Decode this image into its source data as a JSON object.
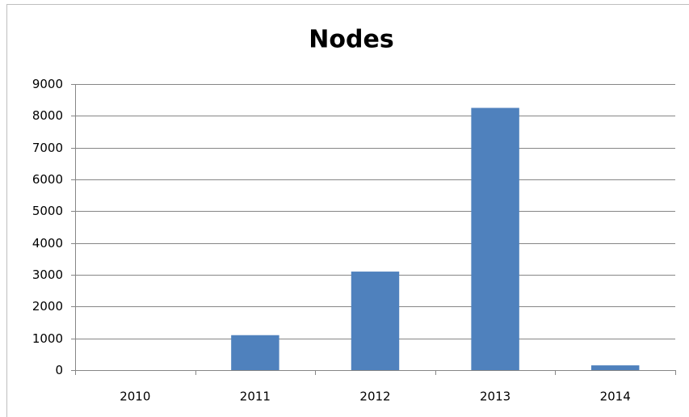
{
  "chart_data": {
    "type": "bar",
    "title": "Nodes",
    "categories": [
      "2010",
      "2011",
      "2012",
      "2013",
      "2014"
    ],
    "values": [
      0,
      1100,
      3100,
      8250,
      150
    ],
    "color": "#4f81bd",
    "ylim": [
      0,
      9000
    ],
    "yticks": [
      0,
      1000,
      2000,
      3000,
      4000,
      5000,
      6000,
      7000,
      8000,
      9000
    ],
    "grid": true
  }
}
